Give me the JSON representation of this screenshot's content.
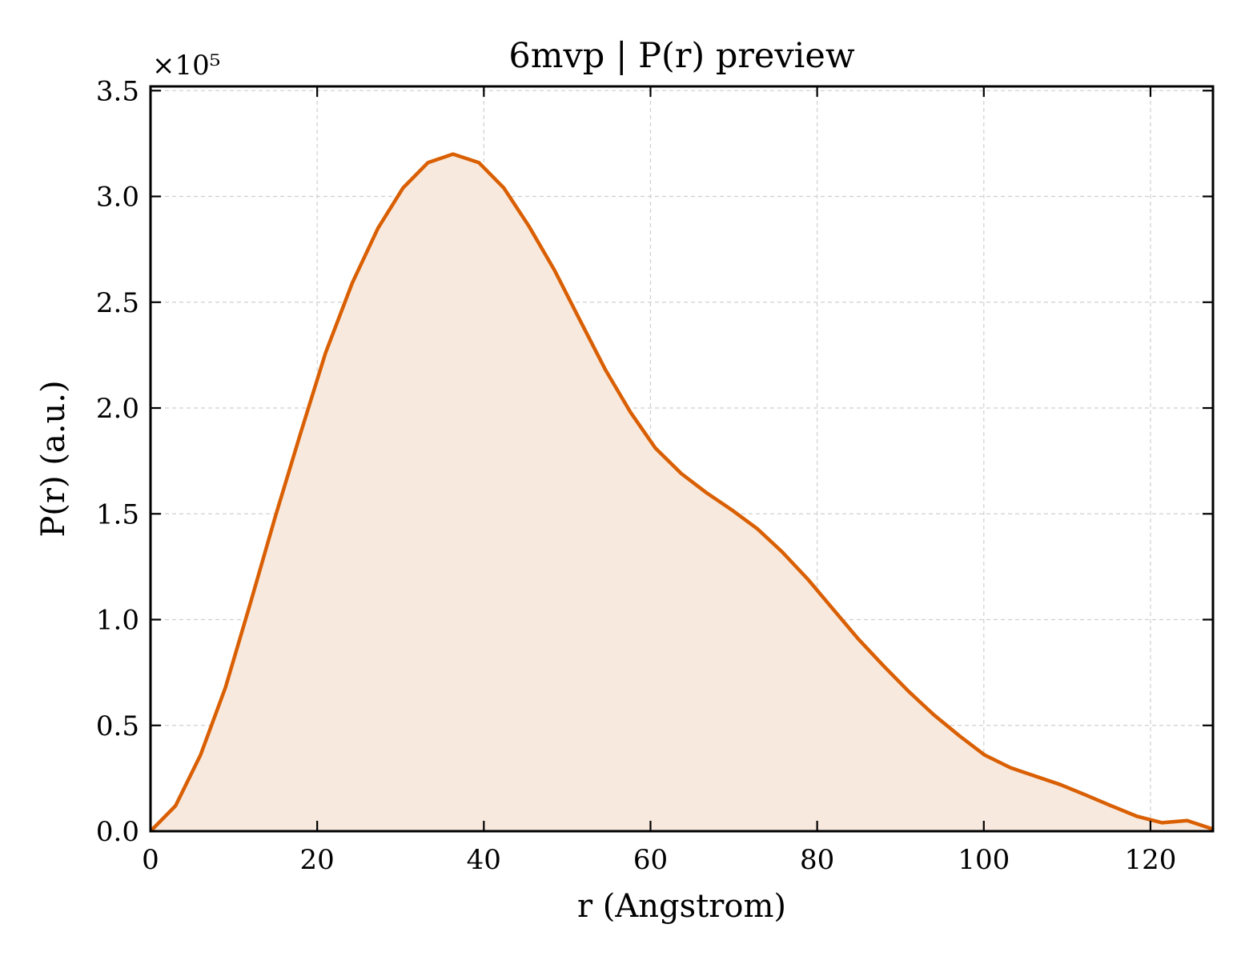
{
  "chart_data": {
    "type": "area",
    "title": "6mvp | P(r) preview",
    "xlabel": "r (Angstrom)",
    "ylabel": "P(r) (a.u.)",
    "y_offset_label": "×10⁵",
    "xlim": [
      0,
      127.5
    ],
    "ylim": [
      0,
      3.52
    ],
    "y_scale_multiplier": 100000,
    "x_ticks": [
      0,
      20,
      40,
      60,
      80,
      100,
      120
    ],
    "x_tick_labels": [
      "0",
      "20",
      "40",
      "60",
      "80",
      "100",
      "120"
    ],
    "y_ticks": [
      0.0,
      0.5,
      1.0,
      1.5,
      2.0,
      2.5,
      3.0,
      3.5
    ],
    "y_tick_labels": [
      "0.0",
      "0.5",
      "1.0",
      "1.5",
      "2.0",
      "2.5",
      "3.0",
      "3.5"
    ],
    "grid": true,
    "series": [
      {
        "x": [
          0,
          3,
          6,
          9,
          12,
          15,
          18,
          21,
          24.2,
          27.3,
          30.3,
          33.3,
          36.3,
          39.4,
          42.4,
          45.4,
          48.5,
          51.6,
          54.6,
          57.6,
          60.6,
          63.7,
          66.7,
          69.7,
          72.8,
          75.8,
          78.9,
          81.9,
          84.9,
          88,
          91,
          94,
          97.1,
          100.1,
          103.2,
          106.2,
          109.2,
          112.3,
          115.3,
          118.4,
          121.4,
          124.4,
          127.5
        ],
        "y": [
          0.0,
          0.12,
          0.36,
          0.68,
          1.08,
          1.49,
          1.88,
          2.26,
          2.59,
          2.85,
          3.04,
          3.16,
          3.2,
          3.16,
          3.04,
          2.86,
          2.65,
          2.41,
          2.18,
          1.98,
          1.81,
          1.69,
          1.6,
          1.52,
          1.43,
          1.32,
          1.19,
          1.05,
          0.91,
          0.78,
          0.66,
          0.55,
          0.45,
          0.36,
          0.3,
          0.26,
          0.22,
          0.17,
          0.12,
          0.07,
          0.04,
          0.05,
          0.01
        ]
      }
    ],
    "colors": {
      "line": "#d95f02",
      "fill": "#f8e9de",
      "grid": "#cfcfcf",
      "axes": "#000000"
    }
  }
}
